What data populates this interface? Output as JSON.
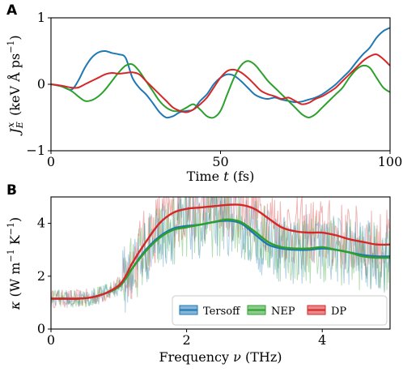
{
  "panels": [
    {
      "letter": "A"
    },
    {
      "letter": "B"
    }
  ],
  "chart_data": [
    {
      "type": "line",
      "xlabel": "Time t (fs)",
      "ylabel": "J_E^x (keV Å ps^-1)",
      "xlim": [
        0,
        100
      ],
      "ylim": [
        -1,
        1
      ],
      "xticks": [
        "0",
        "50",
        "100"
      ],
      "yticks": [
        "-1",
        "0",
        "1"
      ],
      "grid": false,
      "series": [
        {
          "name": "Tersoff",
          "color": "#1f77b4",
          "x": [
            0,
            3,
            6,
            8,
            10,
            12,
            14,
            16,
            18,
            20,
            22,
            24,
            26,
            28,
            30,
            32,
            34,
            36,
            38,
            40,
            42,
            44,
            46,
            48,
            50,
            52,
            54,
            56,
            58,
            60,
            62,
            64,
            66,
            68,
            70,
            72,
            74,
            76,
            78,
            80,
            82,
            84,
            86,
            88,
            90,
            92,
            94,
            96,
            98,
            100
          ],
          "y": [
            0.0,
            -0.03,
            -0.08,
            0.05,
            0.25,
            0.4,
            0.48,
            0.5,
            0.47,
            0.45,
            0.4,
            0.1,
            -0.05,
            -0.15,
            -0.28,
            -0.42,
            -0.5,
            -0.48,
            -0.42,
            -0.4,
            -0.38,
            -0.25,
            -0.15,
            0.0,
            0.1,
            0.15,
            0.13,
            0.05,
            -0.05,
            -0.15,
            -0.2,
            -0.22,
            -0.2,
            -0.23,
            -0.25,
            -0.27,
            -0.26,
            -0.23,
            -0.2,
            -0.15,
            -0.08,
            0.0,
            0.1,
            0.2,
            0.33,
            0.45,
            0.55,
            0.7,
            0.8,
            0.85
          ]
        },
        {
          "name": "NEP",
          "color": "#2ca02c",
          "x": [
            0,
            3,
            6,
            8,
            10,
            12,
            14,
            16,
            18,
            20,
            22,
            24,
            26,
            28,
            30,
            32,
            34,
            36,
            38,
            40,
            42,
            44,
            46,
            48,
            50,
            52,
            54,
            56,
            58,
            60,
            62,
            64,
            66,
            68,
            70,
            72,
            74,
            76,
            78,
            80,
            82,
            84,
            86,
            88,
            90,
            92,
            94,
            96,
            98,
            100
          ],
          "y": [
            0.0,
            -0.03,
            -0.1,
            -0.18,
            -0.25,
            -0.24,
            -0.18,
            -0.08,
            0.05,
            0.18,
            0.28,
            0.3,
            0.2,
            0.05,
            -0.1,
            -0.25,
            -0.35,
            -0.4,
            -0.4,
            -0.35,
            -0.3,
            -0.38,
            -0.48,
            -0.5,
            -0.4,
            -0.15,
            0.1,
            0.28,
            0.35,
            0.3,
            0.18,
            0.05,
            -0.05,
            -0.15,
            -0.25,
            -0.35,
            -0.45,
            -0.5,
            -0.45,
            -0.35,
            -0.25,
            -0.15,
            -0.05,
            0.1,
            0.22,
            0.28,
            0.25,
            0.1,
            -0.05,
            -0.12
          ]
        },
        {
          "name": "DP",
          "color": "#d62728",
          "x": [
            0,
            3,
            6,
            8,
            10,
            12,
            14,
            16,
            18,
            20,
            22,
            24,
            26,
            28,
            30,
            32,
            34,
            36,
            38,
            40,
            42,
            44,
            46,
            48,
            50,
            52,
            54,
            56,
            58,
            60,
            62,
            64,
            66,
            68,
            70,
            72,
            74,
            76,
            78,
            80,
            82,
            84,
            86,
            88,
            90,
            92,
            94,
            96,
            98,
            100
          ],
          "y": [
            0.0,
            -0.02,
            -0.05,
            -0.05,
            0.0,
            0.05,
            0.1,
            0.15,
            0.17,
            0.16,
            0.17,
            0.18,
            0.15,
            0.05,
            -0.05,
            -0.15,
            -0.25,
            -0.35,
            -0.4,
            -0.42,
            -0.38,
            -0.3,
            -0.2,
            -0.05,
            0.1,
            0.2,
            0.22,
            0.18,
            0.1,
            0.0,
            -0.1,
            -0.15,
            -0.18,
            -0.22,
            -0.2,
            -0.25,
            -0.3,
            -0.28,
            -0.22,
            -0.18,
            -0.12,
            -0.05,
            0.05,
            0.15,
            0.25,
            0.35,
            0.42,
            0.45,
            0.38,
            0.28
          ]
        }
      ]
    },
    {
      "type": "line",
      "xlabel": "Frequency ν (THz)",
      "ylabel": "κ (W m^-1 K^-1)",
      "xlim": [
        0,
        5
      ],
      "ylim": [
        0,
        5
      ],
      "xticks": [
        "0",
        "2",
        "4"
      ],
      "yticks": [
        "0",
        "2",
        "4"
      ],
      "grid": false,
      "legend": "bottom-right",
      "series": [
        {
          "name": "Tersoff",
          "color": "#1f77b4",
          "x": [
            0,
            0.2,
            0.4,
            0.6,
            0.8,
            1.0,
            1.1,
            1.2,
            1.4,
            1.6,
            1.8,
            2.0,
            2.2,
            2.4,
            2.6,
            2.8,
            3.0,
            3.2,
            3.4,
            3.6,
            3.8,
            4.0,
            4.2,
            4.4,
            4.6,
            4.8,
            5.0
          ],
          "y": [
            1.15,
            1.15,
            1.15,
            1.2,
            1.35,
            1.6,
            1.9,
            2.3,
            3.0,
            3.5,
            3.8,
            3.9,
            3.95,
            4.05,
            4.1,
            4.0,
            3.6,
            3.2,
            3.05,
            3.0,
            3.0,
            3.05,
            3.0,
            2.9,
            2.8,
            2.75,
            2.75
          ]
        },
        {
          "name": "NEP",
          "color": "#2ca02c",
          "x": [
            0,
            0.2,
            0.4,
            0.6,
            0.8,
            1.0,
            1.1,
            1.2,
            1.4,
            1.6,
            1.8,
            2.0,
            2.2,
            2.4,
            2.6,
            2.8,
            3.0,
            3.2,
            3.4,
            3.6,
            3.8,
            4.0,
            4.2,
            4.4,
            4.6,
            4.8,
            5.0
          ],
          "y": [
            1.15,
            1.15,
            1.15,
            1.2,
            1.35,
            1.6,
            1.9,
            2.3,
            2.95,
            3.45,
            3.75,
            3.85,
            3.95,
            4.05,
            4.15,
            4.05,
            3.7,
            3.3,
            3.1,
            3.05,
            3.05,
            3.1,
            3.0,
            2.9,
            2.75,
            2.7,
            2.7
          ]
        },
        {
          "name": "DP",
          "color": "#d62728",
          "x": [
            0,
            0.2,
            0.4,
            0.6,
            0.8,
            1.0,
            1.1,
            1.2,
            1.4,
            1.6,
            1.8,
            2.0,
            2.2,
            2.4,
            2.6,
            2.8,
            3.0,
            3.2,
            3.4,
            3.6,
            3.8,
            4.0,
            4.2,
            4.4,
            4.6,
            4.8,
            5.0
          ],
          "y": [
            1.15,
            1.15,
            1.15,
            1.2,
            1.35,
            1.65,
            2.0,
            2.5,
            3.3,
            4.0,
            4.4,
            4.55,
            4.6,
            4.65,
            4.7,
            4.7,
            4.55,
            4.2,
            3.85,
            3.7,
            3.65,
            3.65,
            3.55,
            3.4,
            3.3,
            3.2,
            3.2
          ]
        }
      ]
    }
  ]
}
